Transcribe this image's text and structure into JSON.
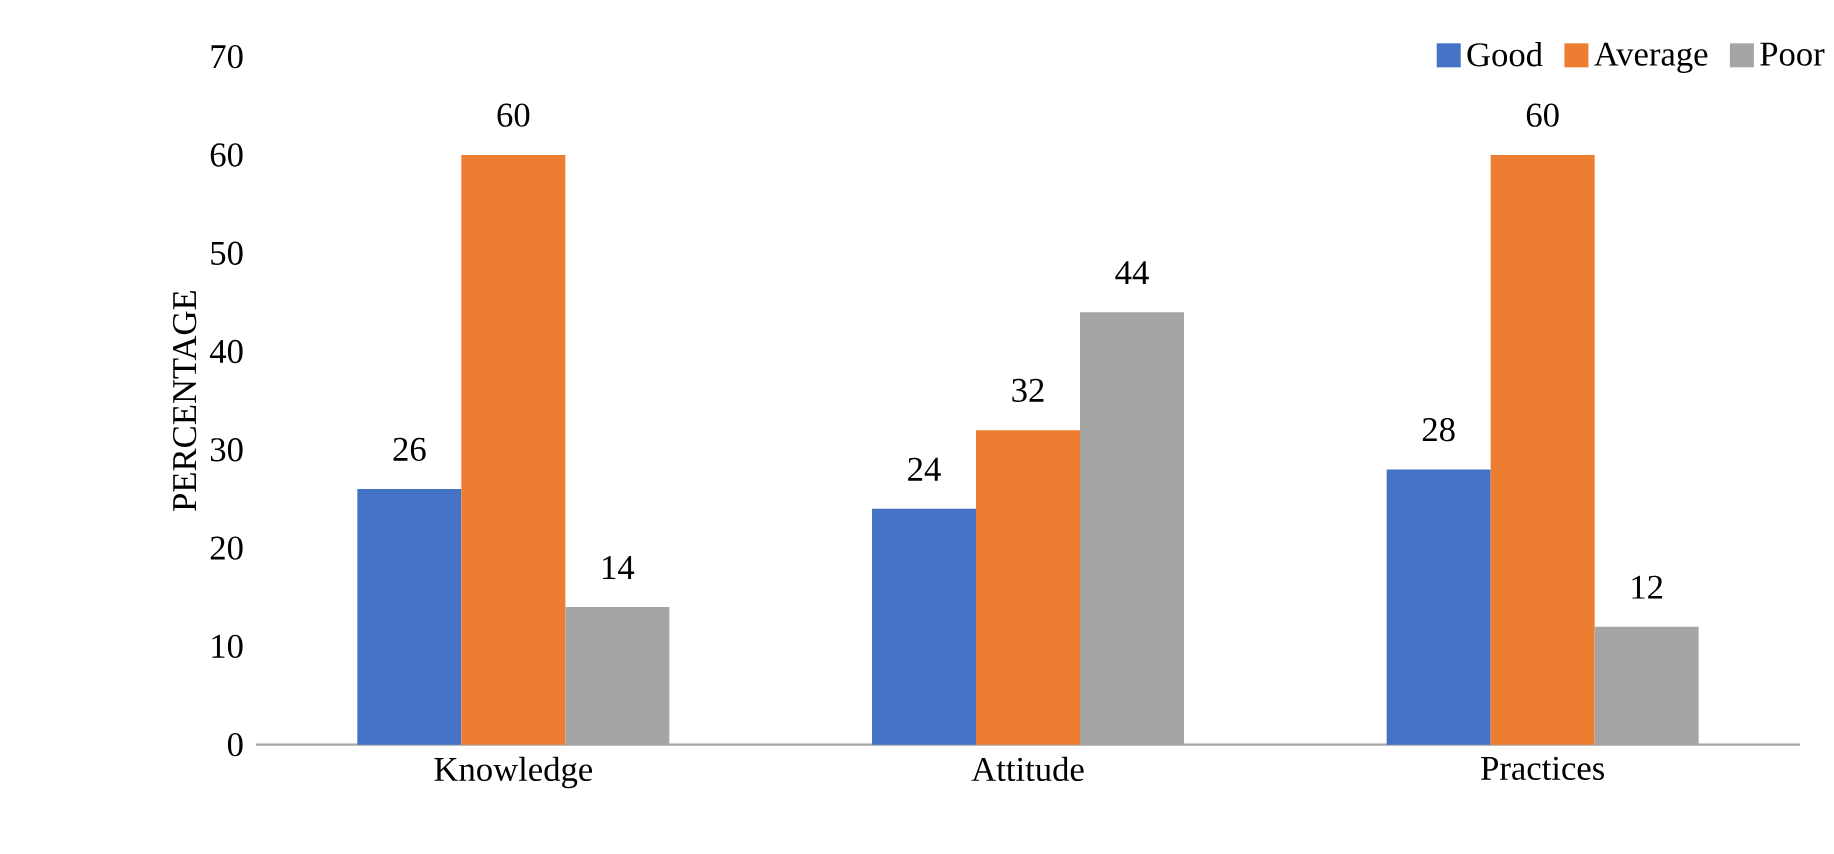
{
  "chart_data": {
    "type": "bar",
    "ylabel": "PERCENTAGE",
    "categories": [
      "Knowledge",
      "Attitude",
      "Practices"
    ],
    "series": [
      {
        "name": "Good",
        "color": "#4472c4",
        "values": [
          26,
          24,
          28
        ]
      },
      {
        "name": "Average",
        "color": "#ed7d31",
        "values": [
          60,
          32,
          60
        ]
      },
      {
        "name": "Poor",
        "color": "#a5a5a5",
        "values": [
          14,
          44,
          12
        ]
      }
    ],
    "ylim": [
      0,
      70
    ],
    "yticks": [
      0,
      10,
      20,
      30,
      40,
      50,
      60,
      70
    ],
    "data_labels": true,
    "legend": "top right",
    "grid": false
  }
}
